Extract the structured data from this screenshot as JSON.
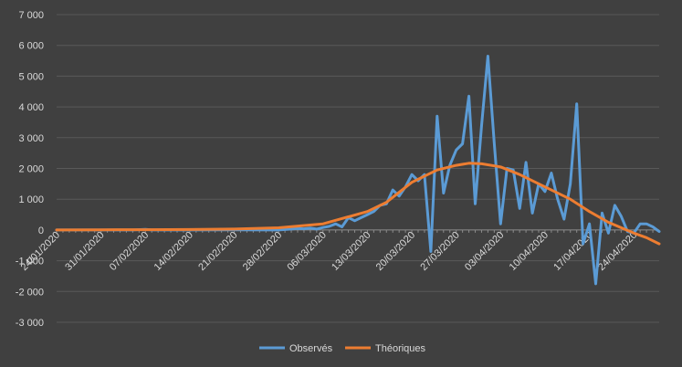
{
  "chart_data": {
    "type": "line",
    "title": "",
    "xlabel": "",
    "ylabel": "",
    "ylim": [
      -3000,
      7000
    ],
    "yticks": [
      -3000,
      -2000,
      -1000,
      0,
      1000,
      2000,
      3000,
      4000,
      5000,
      6000,
      7000
    ],
    "ytick_labels": [
      "-3 000",
      "-2 000",
      "-1 000",
      "0",
      "1 000",
      "2 000",
      "3 000",
      "4 000",
      "5 000",
      "6 000",
      "7 000"
    ],
    "x_start": "24/01/2020",
    "x_end": "28/04/2020",
    "xtick_labels": [
      "24/01/2020",
      "31/01/2020",
      "07/02/2020",
      "14/02/2020",
      "21/02/2020",
      "28/02/2020",
      "06/03/2020",
      "13/03/2020",
      "20/03/2020",
      "27/03/2020",
      "03/04/2020",
      "10/04/2020",
      "17/04/2020",
      "24/04/2020"
    ],
    "grid": true,
    "legend_position": "bottom",
    "colors": {
      "background": "#404040",
      "grid": "#595959",
      "text": "#d9d9d9"
    },
    "series": [
      {
        "name": "Observés",
        "color": "#5b9bd5",
        "points": [
          [
            "24/01/2020",
            0
          ],
          [
            "31/01/2020",
            0
          ],
          [
            "05/02/2020",
            0
          ],
          [
            "07/02/2020",
            20
          ],
          [
            "08/02/2020",
            0
          ],
          [
            "14/02/2020",
            0
          ],
          [
            "21/02/2020",
            5
          ],
          [
            "28/02/2020",
            0
          ],
          [
            "01/03/2020",
            30
          ],
          [
            "02/03/2020",
            50
          ],
          [
            "03/03/2020",
            40
          ],
          [
            "04/03/2020",
            60
          ],
          [
            "05/03/2020",
            30
          ],
          [
            "06/03/2020",
            80
          ],
          [
            "07/03/2020",
            120
          ],
          [
            "08/03/2020",
            200
          ],
          [
            "09/03/2020",
            100
          ],
          [
            "10/03/2020",
            400
          ],
          [
            "11/03/2020",
            300
          ],
          [
            "12/03/2020",
            400
          ],
          [
            "13/03/2020",
            500
          ],
          [
            "14/03/2020",
            600
          ],
          [
            "15/03/2020",
            800
          ],
          [
            "16/03/2020",
            850
          ],
          [
            "17/03/2020",
            1300
          ],
          [
            "18/03/2020",
            1100
          ],
          [
            "19/03/2020",
            1400
          ],
          [
            "20/03/2020",
            1800
          ],
          [
            "21/03/2020",
            1600
          ],
          [
            "22/03/2020",
            1800
          ],
          [
            "23/03/2020",
            -700
          ],
          [
            "24/03/2020",
            3700
          ],
          [
            "25/03/2020",
            1200
          ],
          [
            "26/03/2020",
            2100
          ],
          [
            "27/03/2020",
            2600
          ],
          [
            "28/03/2020",
            2800
          ],
          [
            "29/03/2020",
            4350
          ],
          [
            "30/03/2020",
            850
          ],
          [
            "31/03/2020",
            3400
          ],
          [
            "01/04/2020",
            5650
          ],
          [
            "02/04/2020",
            2800
          ],
          [
            "03/04/2020",
            200
          ],
          [
            "04/04/2020",
            2000
          ],
          [
            "05/04/2020",
            1950
          ],
          [
            "06/04/2020",
            700
          ],
          [
            "07/04/2020",
            2200
          ],
          [
            "08/04/2020",
            550
          ],
          [
            "09/04/2020",
            1500
          ],
          [
            "10/04/2020",
            1250
          ],
          [
            "11/04/2020",
            1850
          ],
          [
            "12/04/2020",
            1000
          ],
          [
            "13/04/2020",
            350
          ],
          [
            "14/04/2020",
            1500
          ],
          [
            "15/04/2020",
            4100
          ],
          [
            "16/04/2020",
            -450
          ],
          [
            "17/04/2020",
            200
          ],
          [
            "18/04/2020",
            -1750
          ],
          [
            "19/04/2020",
            550
          ],
          [
            "20/04/2020",
            -100
          ],
          [
            "21/04/2020",
            800
          ],
          [
            "22/04/2020",
            450
          ],
          [
            "23/04/2020",
            -50
          ],
          [
            "24/04/2020",
            -100
          ],
          [
            "25/04/2020",
            200
          ],
          [
            "26/04/2020",
            200
          ],
          [
            "27/04/2020",
            100
          ],
          [
            "28/04/2020",
            -50
          ]
        ]
      },
      {
        "name": "Théoriques",
        "color": "#ed7d31",
        "points": [
          [
            "24/01/2020",
            0
          ],
          [
            "31/01/2020",
            5
          ],
          [
            "07/02/2020",
            10
          ],
          [
            "14/02/2020",
            15
          ],
          [
            "21/02/2020",
            30
          ],
          [
            "28/02/2020",
            70
          ],
          [
            "06/03/2020",
            200
          ],
          [
            "13/03/2020",
            600
          ],
          [
            "16/03/2020",
            900
          ],
          [
            "20/03/2020",
            1550
          ],
          [
            "24/03/2020",
            1950
          ],
          [
            "27/03/2020",
            2100
          ],
          [
            "29/03/2020",
            2170
          ],
          [
            "31/03/2020",
            2150
          ],
          [
            "03/04/2020",
            2050
          ],
          [
            "06/04/2020",
            1800
          ],
          [
            "10/04/2020",
            1400
          ],
          [
            "14/04/2020",
            1000
          ],
          [
            "17/04/2020",
            600
          ],
          [
            "20/04/2020",
            250
          ],
          [
            "24/04/2020",
            -100
          ],
          [
            "26/04/2020",
            -250
          ],
          [
            "28/04/2020",
            -450
          ]
        ]
      }
    ]
  }
}
